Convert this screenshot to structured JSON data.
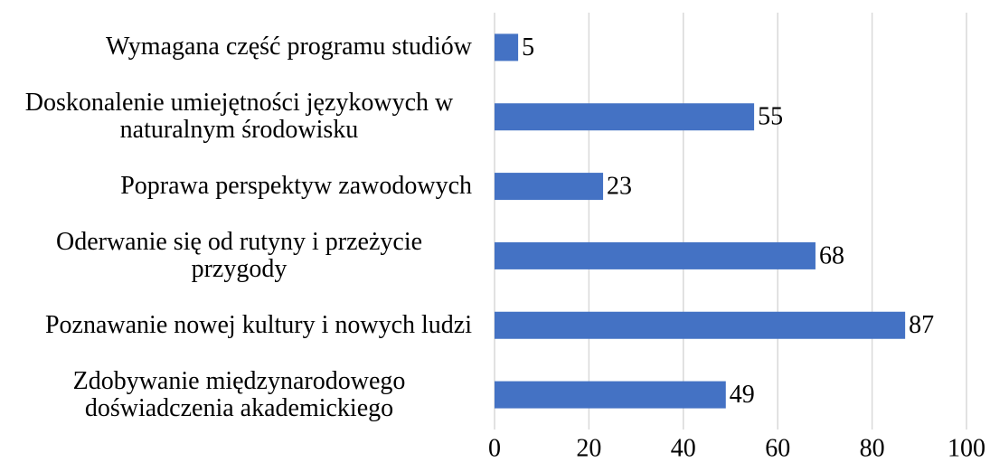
{
  "chart_data": {
    "type": "bar",
    "orientation": "horizontal",
    "categories": [
      "Wymagana część programu studiów",
      "Doskonalenie umiejętności językowych w naturalnym środowisku",
      "Poprawa perspektyw zawodowych",
      "Oderwanie się od rutyny i przeżycie przygody",
      "Poznawanie nowej kultury i nowych ludzi",
      "Zdobywanie międzynarodowego doświadczenia akademickiego"
    ],
    "values": [
      5,
      55,
      23,
      68,
      87,
      49
    ],
    "color": "#4472c4",
    "xlim": [
      0,
      100
    ],
    "xticks": [
      0,
      20,
      40,
      60,
      80,
      100
    ],
    "grid": true
  }
}
